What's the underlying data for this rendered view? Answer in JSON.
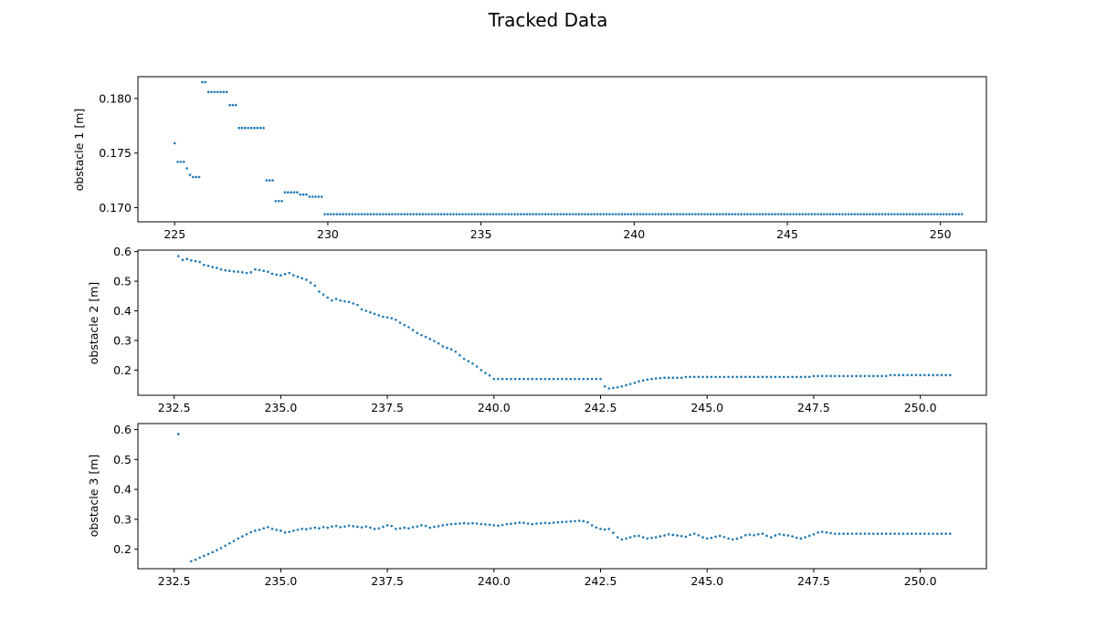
{
  "title": "Tracked Data",
  "marker_color": "#1f77b4",
  "chart_data": [
    {
      "type": "scatter",
      "ylabel": "obstacle 1 [m]",
      "xlabel": "",
      "xlim": [
        223.8,
        251.5
      ],
      "ylim": [
        0.1687,
        0.182
      ],
      "xticks": [
        225,
        230,
        235,
        240,
        245,
        250
      ],
      "xtick_labels": [
        "225",
        "230",
        "235",
        "240",
        "245",
        "250"
      ],
      "yticks": [
        0.17,
        0.175,
        0.18
      ],
      "ytick_labels": [
        "0.170",
        "0.175",
        "0.180"
      ],
      "step": 0.1,
      "series": [
        {
          "segments": [
            {
              "x0": 225.0,
              "x1": 225.0,
              "y": 0.1759
            },
            {
              "x0": 225.1,
              "x1": 225.3,
              "y": 0.1742
            },
            {
              "x0": 225.4,
              "x1": 225.4,
              "y": 0.1736
            },
            {
              "x0": 225.5,
              "x1": 225.5,
              "y": 0.173
            },
            {
              "x0": 225.6,
              "x1": 225.8,
              "y": 0.1728
            },
            {
              "x0": 225.9,
              "x1": 226.0,
              "y": 0.1815
            },
            {
              "x0": 226.1,
              "x1": 226.7,
              "y": 0.1806
            },
            {
              "x0": 226.8,
              "x1": 227.0,
              "y": 0.1794
            },
            {
              "x0": 227.1,
              "x1": 227.9,
              "y": 0.1773
            },
            {
              "x0": 228.0,
              "x1": 228.2,
              "y": 0.1725
            },
            {
              "x0": 228.3,
              "x1": 228.5,
              "y": 0.1706
            },
            {
              "x0": 228.6,
              "x1": 229.0,
              "y": 0.1714
            },
            {
              "x0": 229.1,
              "x1": 229.3,
              "y": 0.1712
            },
            {
              "x0": 229.4,
              "x1": 229.8,
              "y": 0.171
            },
            {
              "x0": 229.9,
              "x1": 250.7,
              "y": 0.1694
            }
          ]
        }
      ]
    },
    {
      "type": "scatter",
      "ylabel": "obstacle 2 [m]",
      "xlabel": "",
      "xlim": [
        231.65,
        251.55
      ],
      "ylim": [
        0.115,
        0.605
      ],
      "xticks": [
        232.5,
        235.0,
        237.5,
        240.0,
        242.5,
        245.0,
        247.5,
        250.0
      ],
      "xtick_labels": [
        "232.5",
        "235.0",
        "237.5",
        "240.0",
        "242.5",
        "245.0",
        "247.5",
        "250.0"
      ],
      "yticks": [
        0.2,
        0.3,
        0.4,
        0.5,
        0.6
      ],
      "ytick_labels": [
        "0.2",
        "0.3",
        "0.4",
        "0.5",
        "0.6"
      ],
      "step": 0.1,
      "series": [
        {
          "x": [
            232.6,
            232.7,
            232.8,
            232.9,
            233.0,
            233.1,
            233.2,
            233.3,
            233.4,
            233.5,
            233.6,
            233.7,
            233.8,
            233.9,
            234.0,
            234.1,
            234.2,
            234.3,
            234.4,
            234.5,
            234.6,
            234.7,
            234.8,
            234.9,
            235.0,
            235.1,
            235.2,
            235.3,
            235.4,
            235.5,
            235.6,
            235.7,
            235.8,
            235.9,
            236.0,
            236.1,
            236.2,
            236.3,
            236.4,
            236.5,
            236.6,
            236.7,
            236.8,
            236.9,
            237.0,
            237.1,
            237.2,
            237.3,
            237.4,
            237.5,
            237.6,
            237.7,
            237.8,
            237.9,
            238.0,
            238.1,
            238.2,
            238.3,
            238.4,
            238.5,
            238.6,
            238.7,
            238.8,
            238.9,
            239.0,
            239.1,
            239.2,
            239.3,
            239.4,
            239.5,
            239.6,
            239.7,
            239.8,
            239.9
          ],
          "y": [
            0.585,
            0.572,
            0.575,
            0.57,
            0.568,
            0.565,
            0.555,
            0.552,
            0.548,
            0.545,
            0.54,
            0.537,
            0.535,
            0.533,
            0.532,
            0.53,
            0.528,
            0.53,
            0.54,
            0.538,
            0.535,
            0.532,
            0.525,
            0.522,
            0.52,
            0.524,
            0.528,
            0.52,
            0.515,
            0.51,
            0.505,
            0.495,
            0.485,
            0.465,
            0.455,
            0.445,
            0.435,
            0.44,
            0.435,
            0.432,
            0.43,
            0.425,
            0.42,
            0.405,
            0.4,
            0.395,
            0.39,
            0.385,
            0.38,
            0.378,
            0.375,
            0.37,
            0.36,
            0.352,
            0.345,
            0.335,
            0.325,
            0.318,
            0.312,
            0.305,
            0.298,
            0.29,
            0.28,
            0.275,
            0.27,
            0.262,
            0.25,
            0.238,
            0.23,
            0.222,
            0.212,
            0.2,
            0.19,
            0.182
          ]
        },
        {
          "segments": [
            {
              "x0": 240.0,
              "x1": 242.5,
              "y": 0.17
            },
            {
              "x0": 242.6,
              "x1": 242.6,
              "y": 0.145
            },
            {
              "x0": 242.7,
              "x1": 242.7,
              "y": 0.138
            }
          ]
        },
        {
          "x": [
            242.8,
            242.9,
            243.0,
            243.1,
            243.2,
            243.3,
            243.4,
            243.5,
            243.6,
            243.7,
            243.8,
            243.9
          ],
          "y": [
            0.14,
            0.142,
            0.145,
            0.149,
            0.153,
            0.157,
            0.162,
            0.165,
            0.168,
            0.17,
            0.172,
            0.173
          ]
        },
        {
          "segments": [
            {
              "x0": 244.0,
              "x1": 244.4,
              "y": 0.174
            },
            {
              "x0": 244.5,
              "x1": 247.4,
              "y": 0.177
            },
            {
              "x0": 247.5,
              "x1": 249.2,
              "y": 0.18
            },
            {
              "x0": 249.3,
              "x1": 250.7,
              "y": 0.183
            }
          ]
        }
      ]
    },
    {
      "type": "scatter",
      "ylabel": "obstacle 3 [m]",
      "xlabel": "",
      "xlim": [
        231.65,
        251.55
      ],
      "ylim": [
        0.135,
        0.62
      ],
      "xticks": [
        232.5,
        235.0,
        237.5,
        240.0,
        242.5,
        245.0,
        247.5,
        250.0
      ],
      "xtick_labels": [
        "232.5",
        "235.0",
        "237.5",
        "240.0",
        "242.5",
        "245.0",
        "247.5",
        "250.0"
      ],
      "yticks": [
        0.2,
        0.3,
        0.4,
        0.5,
        0.6
      ],
      "ytick_labels": [
        "0.2",
        "0.3",
        "0.4",
        "0.5",
        "0.6"
      ],
      "step": 0.1,
      "series": [
        {
          "x": [
            232.6,
            232.9,
            233.0,
            233.1,
            233.2,
            233.3,
            233.4,
            233.5,
            233.6,
            233.7,
            233.8,
            233.9,
            234.0,
            234.1,
            234.2,
            234.3,
            234.4,
            234.5,
            234.6,
            234.7,
            234.8,
            234.9,
            235.0,
            235.1,
            235.2,
            235.3,
            235.4,
            235.5,
            235.6,
            235.7,
            235.8,
            235.9,
            236.0,
            236.1,
            236.2,
            236.3,
            236.4,
            236.5,
            236.6,
            236.7,
            236.8,
            236.9,
            237.0,
            237.1,
            237.2,
            237.3,
            237.4,
            237.5,
            237.6,
            237.7,
            237.8,
            237.9,
            238.0,
            238.1,
            238.2,
            238.3,
            238.4,
            238.5,
            238.6,
            238.7,
            238.8,
            238.9,
            239.0,
            239.1,
            239.2,
            239.3,
            239.4,
            239.5,
            239.6,
            239.7,
            239.8,
            239.9,
            240.0,
            240.1,
            240.2,
            240.3,
            240.4,
            240.5,
            240.6,
            240.7,
            240.8,
            240.9,
            241.0,
            241.1,
            241.2,
            241.3,
            241.4,
            241.5,
            241.6,
            241.7,
            241.8,
            241.9,
            242.0,
            242.1,
            242.2,
            242.3,
            242.4,
            242.5,
            242.6,
            242.7,
            242.8,
            242.9,
            243.0,
            243.1,
            243.2,
            243.3,
            243.4,
            243.5,
            243.6,
            243.7,
            243.8,
            243.9,
            244.0,
            244.1,
            244.2,
            244.3,
            244.4,
            244.5,
            244.6,
            244.7,
            244.8,
            244.9,
            245.0,
            245.1,
            245.2,
            245.3,
            245.4,
            245.5,
            245.6,
            245.7,
            245.8,
            245.9,
            246.0,
            246.1,
            246.2,
            246.3,
            246.4,
            246.5,
            246.6,
            246.7,
            246.8,
            246.9,
            247.0,
            247.1,
            247.2,
            247.3,
            247.4
          ],
          "y": [
            0.585,
            0.16,
            0.165,
            0.172,
            0.178,
            0.184,
            0.19,
            0.197,
            0.204,
            0.212,
            0.22,
            0.228,
            0.236,
            0.243,
            0.25,
            0.257,
            0.262,
            0.265,
            0.27,
            0.274,
            0.268,
            0.265,
            0.262,
            0.256,
            0.258,
            0.262,
            0.265,
            0.268,
            0.267,
            0.27,
            0.272,
            0.27,
            0.274,
            0.272,
            0.276,
            0.278,
            0.274,
            0.276,
            0.279,
            0.277,
            0.275,
            0.273,
            0.276,
            0.272,
            0.268,
            0.27,
            0.275,
            0.28,
            0.278,
            0.268,
            0.27,
            0.272,
            0.27,
            0.274,
            0.276,
            0.28,
            0.278,
            0.272,
            0.275,
            0.277,
            0.28,
            0.282,
            0.284,
            0.285,
            0.286,
            0.287,
            0.286,
            0.287,
            0.286,
            0.284,
            0.283,
            0.282,
            0.28,
            0.279,
            0.281,
            0.284,
            0.285,
            0.287,
            0.289,
            0.288,
            0.286,
            0.284,
            0.286,
            0.287,
            0.288,
            0.287,
            0.289,
            0.29,
            0.291,
            0.292,
            0.293,
            0.294,
            0.295,
            0.294,
            0.29,
            0.28,
            0.273,
            0.268,
            0.266,
            0.268,
            0.255,
            0.24,
            0.233,
            0.236,
            0.24,
            0.244,
            0.245,
            0.24,
            0.236,
            0.238,
            0.24,
            0.243,
            0.246,
            0.25,
            0.248,
            0.246,
            0.244,
            0.242,
            0.248,
            0.252,
            0.247,
            0.24,
            0.236,
            0.238,
            0.242,
            0.245,
            0.241,
            0.236,
            0.233,
            0.235,
            0.24,
            0.247,
            0.249,
            0.247,
            0.25,
            0.252,
            0.245,
            0.24,
            0.246,
            0.25,
            0.248,
            0.246,
            0.243,
            0.238,
            0.236,
            0.24,
            0.245
          ]
        },
        {
          "x": [
            247.5,
            247.6,
            247.7,
            247.8,
            247.9
          ],
          "y": [
            0.25,
            0.256,
            0.258,
            0.256,
            0.254
          ]
        },
        {
          "segments": [
            {
              "x0": 248.0,
              "x1": 250.7,
              "y": 0.252
            }
          ]
        }
      ]
    }
  ]
}
